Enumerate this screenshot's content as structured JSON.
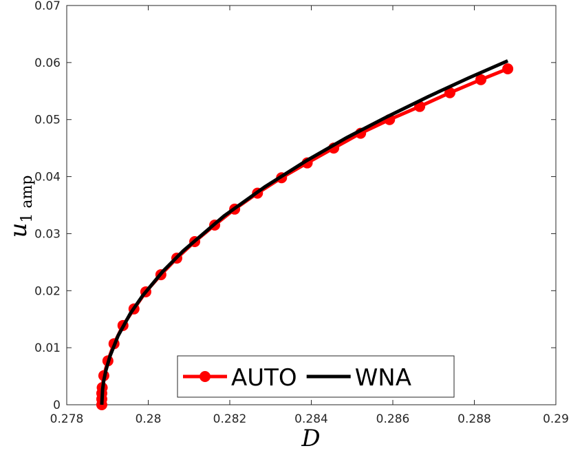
{
  "chart_data": {
    "type": "line",
    "xlabel": "D",
    "ylabel": "u",
    "ylabel_subscript": "1 amp",
    "xlim": [
      0.278,
      0.29
    ],
    "xticks": [
      0.278,
      0.28,
      0.282,
      0.284,
      0.286,
      0.288,
      0.29
    ],
    "ylim": [
      0,
      0.07
    ],
    "yticks": [
      0,
      0.01,
      0.02,
      0.03,
      0.04,
      0.05,
      0.06,
      0.07
    ],
    "legend_position": "bottom",
    "series": [
      {
        "name": "AUTO",
        "color": "#ff0000",
        "markers": true,
        "x": [
          0.27886,
          0.27886,
          0.27886,
          0.27887,
          0.27891,
          0.27901,
          0.27916,
          0.27938,
          0.27965,
          0.27994,
          0.28031,
          0.2807,
          0.28114,
          0.28163,
          0.28212,
          0.28268,
          0.28327,
          0.2839,
          0.28455,
          0.28521,
          0.28592,
          0.28666,
          0.2874,
          0.28816,
          0.28882
        ],
        "values": [
          0,
          0.001,
          0.002,
          0.003,
          0.0051,
          0.0077,
          0.0107,
          0.0139,
          0.0168,
          0.0198,
          0.0228,
          0.0257,
          0.0286,
          0.0315,
          0.0343,
          0.0371,
          0.0398,
          0.0424,
          0.045,
          0.0476,
          0.05,
          0.0523,
          0.0547,
          0.057,
          0.0589
        ]
      },
      {
        "name": "WNA",
        "color": "#000000",
        "markers": false,
        "x": [
          0.27886,
          0.27888,
          0.27891,
          0.27896,
          0.27906,
          0.27926,
          0.27956,
          0.27986,
          0.28036,
          0.28086,
          0.28186,
          0.28286,
          0.28386,
          0.28486,
          0.28586,
          0.28686,
          0.28786,
          0.28882
        ],
        "values": [
          0,
          0.0027,
          0.0043,
          0.006,
          0.0085,
          0.0121,
          0.016,
          0.0191,
          0.0234,
          0.027,
          0.0331,
          0.0382,
          0.0427,
          0.0468,
          0.0505,
          0.054,
          0.0573,
          0.0603
        ]
      }
    ]
  }
}
